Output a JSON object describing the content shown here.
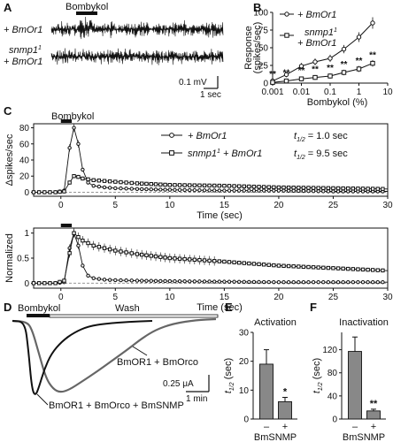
{
  "panels": {
    "A": {
      "letter": "A",
      "stim_label": "Bombykol",
      "trace_labels": [
        "+ BmOr1",
        "snmp1",
        "+ BmOr1"
      ],
      "trace_label_sup": "1",
      "scale_v": "0.1 mV",
      "scale_t": "1 sec"
    },
    "B": {
      "letter": "B"
    },
    "C": {
      "letter": "C",
      "stim_label": "Bombykol",
      "legend": [
        {
          "name": "+ BmOr1",
          "t_half_label": "t",
          "t_half_sub": "1/2",
          "t_half_value": "= 1.0 sec"
        },
        {
          "name": "snmp1",
          "sup": "1",
          "name_tail": " + BmOr1",
          "t_half_label": "t",
          "t_half_sub": "1/2",
          "t_half_value": "= 9.5 sec"
        }
      ]
    },
    "D": {
      "letter": "D",
      "bar_labels": [
        "Bombykol",
        "Wash"
      ],
      "labels": [
        "BmOR1 + BmOrco",
        "BmOR1 + BmOrco + BmSNMP"
      ],
      "scale_i": "0.25 μA",
      "scale_t": "1 min"
    },
    "E": {
      "letter": "E"
    },
    "F": {
      "letter": "F"
    }
  },
  "chart_data": [
    {
      "id": "B",
      "type": "line",
      "xlabel": "Bombykol (%)",
      "ylabel": "Response (spikes/sec)",
      "x_scale": "log",
      "xlim": [
        0.001,
        10
      ],
      "ylim": [
        0,
        100
      ],
      "x_ticks": [
        "0.001",
        "0.01",
        "0.1",
        "1",
        "10"
      ],
      "y_ticks": [
        "0",
        "25",
        "50",
        "75",
        "100"
      ],
      "x": [
        0.001,
        0.003,
        0.01,
        0.03,
        0.1,
        0.3,
        1,
        3
      ],
      "series": [
        {
          "name": "+ BmOr1",
          "marker": "circle",
          "values": [
            3,
            12,
            24,
            30,
            35,
            48,
            65,
            85
          ]
        },
        {
          "name": "snmp1 + BmOr1",
          "marker": "square",
          "values": [
            1,
            3,
            6,
            8,
            10,
            15,
            20,
            28
          ]
        }
      ],
      "annotations": [
        "**",
        "**",
        "**",
        "**",
        "**",
        "**",
        "**",
        "**"
      ],
      "legend": [
        "+ BmOr1",
        "snmp1",
        "+ BmOr1"
      ],
      "legend_sup": "1"
    },
    {
      "id": "C-top",
      "type": "line",
      "xlabel": "Time (sec)",
      "ylabel": "Δspikes/sec",
      "xlim": [
        -2.5,
        30
      ],
      "ylim": [
        -5,
        85
      ],
      "x_ticks": [
        "0",
        "5",
        "10",
        "15",
        "20",
        "25",
        "30"
      ],
      "y_ticks": [
        "0",
        "20",
        "40",
        "60",
        "80"
      ],
      "series": [
        {
          "name": "+ BmOr1",
          "marker": "circle",
          "points": [
            [
              -2.5,
              0
            ],
            [
              -1.5,
              0
            ],
            [
              -0.5,
              0
            ],
            [
              0.3,
              2
            ],
            [
              0.8,
              55
            ],
            [
              1.2,
              80
            ],
            [
              1.6,
              60
            ],
            [
              2,
              28
            ],
            [
              2.5,
              12
            ],
            [
              3,
              8
            ],
            [
              4,
              6
            ],
            [
              5,
              5
            ],
            [
              7,
              4
            ],
            [
              10,
              3
            ],
            [
              15,
              2
            ],
            [
              20,
              2
            ],
            [
              25,
              1
            ],
            [
              30,
              1
            ]
          ]
        },
        {
          "name": "snmp1 + BmOr1",
          "marker": "square",
          "points": [
            [
              -2.5,
              0
            ],
            [
              -1.5,
              0
            ],
            [
              -0.5,
              0
            ],
            [
              0.3,
              1
            ],
            [
              0.8,
              12
            ],
            [
              1.2,
              20
            ],
            [
              1.6,
              19
            ],
            [
              2,
              17
            ],
            [
              3,
              15
            ],
            [
              4,
              14
            ],
            [
              5,
              13
            ],
            [
              7,
              11
            ],
            [
              10,
              9
            ],
            [
              15,
              8
            ],
            [
              20,
              6
            ],
            [
              25,
              5
            ],
            [
              30,
              4
            ]
          ]
        }
      ]
    },
    {
      "id": "C-bottom",
      "type": "line",
      "xlabel": "Time (sec)",
      "ylabel": "Normalized",
      "xlim": [
        -2.5,
        30
      ],
      "ylim": [
        -0.1,
        1.1
      ],
      "x_ticks": [
        "0",
        "5",
        "10",
        "15",
        "20",
        "25",
        "30"
      ],
      "y_ticks": [
        "0",
        "0.5",
        "1"
      ],
      "series": [
        {
          "name": "+ BmOr1",
          "marker": "circle",
          "points": [
            [
              -2.5,
              0
            ],
            [
              -1.5,
              0
            ],
            [
              -0.5,
              0
            ],
            [
              0.3,
              0.02
            ],
            [
              0.8,
              0.7
            ],
            [
              1.2,
              1.0
            ],
            [
              1.6,
              0.75
            ],
            [
              2,
              0.35
            ],
            [
              2.5,
              0.15
            ],
            [
              3,
              0.1
            ],
            [
              4,
              0.07
            ],
            [
              5,
              0.06
            ],
            [
              7,
              0.05
            ],
            [
              10,
              0.04
            ],
            [
              15,
              0.03
            ],
            [
              20,
              0.02
            ],
            [
              25,
              0.02
            ],
            [
              30,
              0.02
            ]
          ]
        },
        {
          "name": "snmp1 + BmOr1",
          "marker": "square",
          "points": [
            [
              -2.5,
              0
            ],
            [
              -1.5,
              0
            ],
            [
              -0.5,
              0
            ],
            [
              0.3,
              0.05
            ],
            [
              0.8,
              0.6
            ],
            [
              1.2,
              1.0
            ],
            [
              1.6,
              0.92
            ],
            [
              2,
              0.85
            ],
            [
              3,
              0.75
            ],
            [
              4,
              0.7
            ],
            [
              5,
              0.65
            ],
            [
              7,
              0.58
            ],
            [
              10,
              0.5
            ],
            [
              15,
              0.43
            ],
            [
              20,
              0.35
            ],
            [
              25,
              0.3
            ],
            [
              30,
              0.25
            ]
          ]
        }
      ]
    },
    {
      "id": "E",
      "type": "bar",
      "title": "Activation",
      "ylabel": "t1/2 (sec)",
      "ylim": [
        0,
        30
      ],
      "y_ticks": [
        "0",
        "10",
        "20",
        "30"
      ],
      "categories": [
        "–",
        "+"
      ],
      "values": [
        19,
        6
      ],
      "errors": [
        5,
        1.5
      ],
      "xlabel": "BmSNMP",
      "annotations": [
        "",
        "*"
      ]
    },
    {
      "id": "F",
      "type": "bar",
      "title": "Inactivation",
      "ylabel": "t1/2 (sec)",
      "ylim": [
        0,
        150
      ],
      "y_ticks": [
        "0",
        "40",
        "80",
        "120"
      ],
      "categories": [
        "–",
        "+"
      ],
      "values": [
        117,
        14
      ],
      "errors": [
        25,
        3
      ],
      "xlabel": "BmSNMP",
      "annotations": [
        "",
        "**"
      ]
    }
  ],
  "colors": {
    "ink": "#111111",
    "bar": "#888888",
    "trace_gray": "#666666"
  }
}
